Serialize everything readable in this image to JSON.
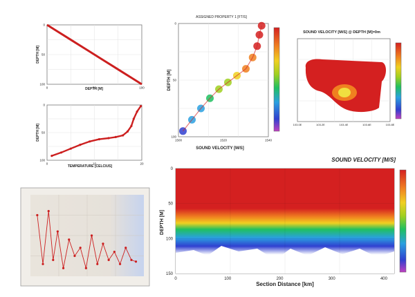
{
  "chart_data": [
    {
      "id": "depth-profile",
      "type": "line",
      "xlabel": "DEPTH [M]",
      "ylabel": "DEPTH [M]",
      "xlim": [
        0,
        100
      ],
      "ylim": [
        0,
        100
      ],
      "y_inverted": true,
      "x_ticks": [
        "0",
        "50",
        "100"
      ],
      "y_ticks": [
        "0",
        "50",
        "100"
      ],
      "series": [
        {
          "x": [
            0,
            10,
            20,
            30,
            40,
            50,
            60,
            70,
            80,
            90,
            100
          ],
          "y": [
            0,
            10,
            20,
            30,
            40,
            50,
            60,
            70,
            80,
            90,
            100
          ]
        }
      ],
      "color": "#cc1f1f"
    },
    {
      "id": "temperature-profile",
      "type": "line",
      "xlabel": "TEMPERATURE [CELCIUS]",
      "ylabel": "DEPTH [M]",
      "xlim": [
        0,
        20
      ],
      "ylim": [
        0,
        100
      ],
      "y_inverted": true,
      "x_ticks": [
        "0",
        "10",
        "20"
      ],
      "y_ticks": [
        "0",
        "50",
        "100"
      ],
      "series": [
        {
          "x": [
            1,
            3,
            5,
            7,
            9,
            11,
            13,
            14.5,
            16,
            17,
            17.8,
            18.3,
            19,
            19.8
          ],
          "y": [
            92,
            86,
            79,
            72,
            66,
            62,
            60,
            58,
            55,
            48,
            38,
            25,
            12,
            2
          ]
        }
      ],
      "color": "#cc1f1f"
    },
    {
      "id": "track-plot",
      "type": "line",
      "x_ticks": [
        "",
        "",
        "",
        ""
      ],
      "y_ticks": [
        "",
        "",
        "",
        ""
      ],
      "xlim": [
        0,
        10
      ],
      "ylim": [
        0,
        10
      ],
      "series": [
        {
          "x": [
            0.6,
            1.1,
            1.6,
            2.0,
            2.4,
            2.9,
            3.4,
            3.9,
            4.4,
            4.9,
            5.4,
            5.9,
            6.4,
            6.9,
            7.4,
            7.9,
            8.4,
            8.9,
            9.3
          ],
          "y": [
            7.5,
            1.5,
            8.0,
            2.0,
            5.5,
            1.0,
            4.5,
            2.5,
            3.5,
            1.0,
            5.0,
            1.5,
            4.0,
            2.0,
            3.0,
            1.5,
            3.5,
            2.0,
            1.8
          ]
        }
      ],
      "color": "#cc1f1f"
    },
    {
      "id": "sound-velocity-profile",
      "type": "scatter",
      "title": "ASSIGNED PROPERTY 1 [FT/S]",
      "xlabel": "SOUND VELOCITY [M/S]",
      "ylabel": "DEPTH [M]",
      "xlim": [
        1500,
        1540
      ],
      "ylim": [
        0,
        100
      ],
      "y_inverted": true,
      "x_ticks": [
        "1500",
        "1520",
        "1540"
      ],
      "y_ticks": [
        "0",
        "50",
        "100"
      ],
      "series": [
        {
          "x": [
            1502,
            1506,
            1510,
            1514,
            1518,
            1522,
            1526,
            1530,
            1533,
            1535,
            1536,
            1537
          ],
          "y": [
            95,
            85,
            75,
            66,
            58,
            52,
            46,
            40,
            30,
            20,
            10,
            2
          ]
        }
      ],
      "colorbar": {
        "min": 1500,
        "max": 1540
      }
    },
    {
      "id": "sound-velocity-depth-map",
      "type": "heatmap",
      "title": "SOUND VELOCITY [M/S] @ DEPTH [M]=0m",
      "x_ticks": [
        "103.0E",
        "103.2E",
        "103.4E",
        "103.6E",
        "103.8E"
      ],
      "colorbar": {
        "min": 1500,
        "max": 1540
      }
    },
    {
      "id": "sound-velocity-section",
      "type": "heatmap",
      "title": "SOUND VELOCITY [M/S]",
      "xlabel": "Section Distance [km]",
      "ylabel": "DEPTH [M]",
      "xlim": [
        0,
        420
      ],
      "ylim": [
        0,
        150
      ],
      "y_inverted": true,
      "x_ticks": [
        "0",
        "100",
        "200",
        "300",
        "400"
      ],
      "y_ticks": [
        "0",
        "50",
        "100",
        "150"
      ],
      "colorbar": {
        "min": 1500,
        "max": 1540
      }
    }
  ]
}
